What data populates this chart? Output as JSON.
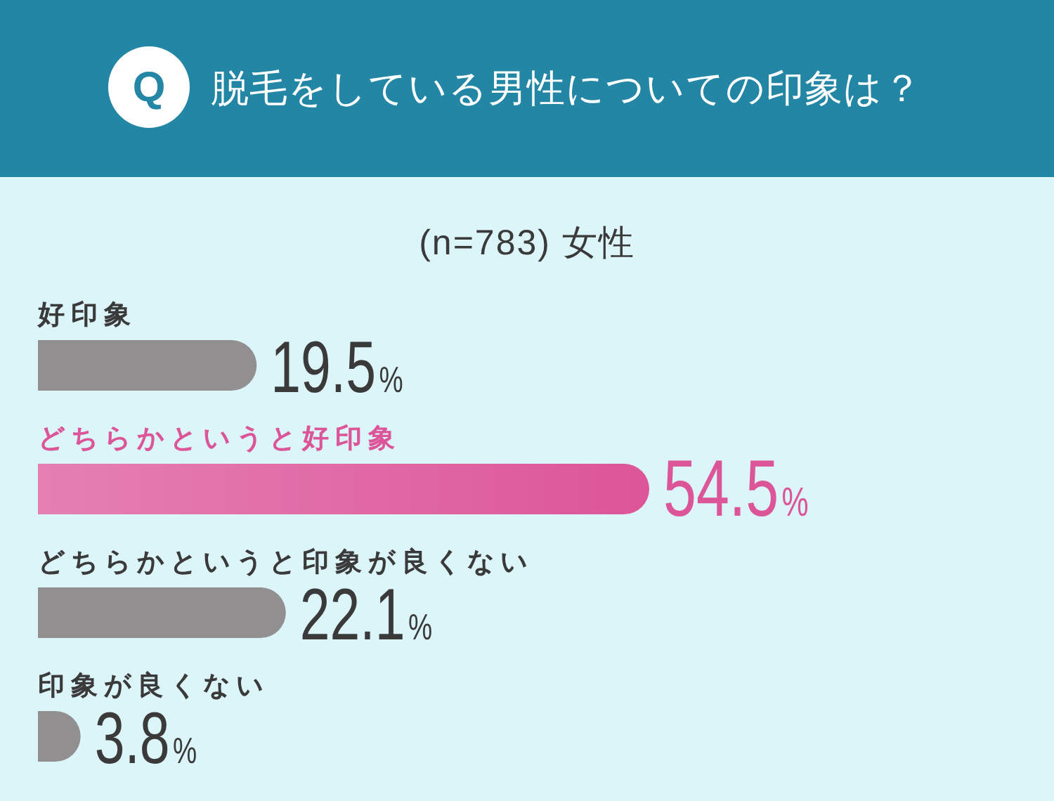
{
  "chart_data": {
    "type": "bar",
    "orientation": "horizontal",
    "title": "脱毛をしている男性についての印象は？",
    "subtitle": "(n=783) 女性",
    "annotations": [
      "Q"
    ],
    "categories": [
      "好印象",
      "どちらかというと好印象",
      "どちらかというと印象が良くない",
      "印象が良くない"
    ],
    "values": [
      19.5,
      54.5,
      22.1,
      3.8
    ],
    "colors": [
      "#918f90",
      "#dc5599",
      "#918f90",
      "#918f90"
    ],
    "value_labels": [
      "19.5%",
      "54.5%",
      "22.1%",
      "3.8%"
    ]
  }
}
